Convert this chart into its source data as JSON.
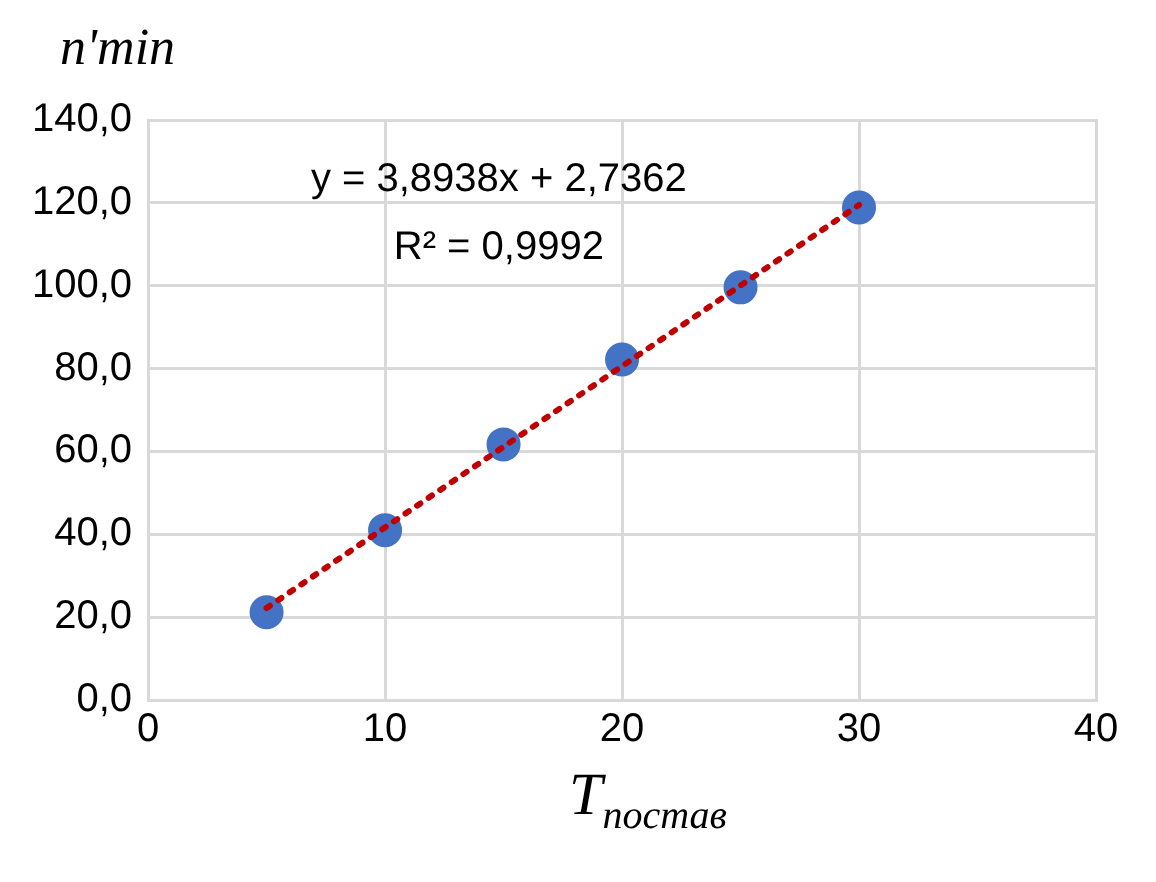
{
  "chart_data": {
    "type": "scatter",
    "xlabel": "T$_{постав}$",
    "ylabel": "n'min",
    "xlim": [
      0,
      40
    ],
    "xticks": [
      0,
      10,
      20,
      30,
      40
    ],
    "ylim": [
      0,
      140
    ],
    "yticks": [
      {
        "value": 0,
        "label": "0,0"
      },
      {
        "value": 20,
        "label": "20,0"
      },
      {
        "value": 40,
        "label": "40,0"
      },
      {
        "value": 60,
        "label": "60,0"
      },
      {
        "value": 80,
        "label": "80,0"
      },
      {
        "value": 100,
        "label": "100,0"
      },
      {
        "value": 120,
        "label": "120,0"
      },
      {
        "value": 140,
        "label": "140,0"
      }
    ],
    "grid": true,
    "marker": "circle",
    "series": [
      {
        "color": "#4472c4",
        "x": [
          5,
          10,
          15,
          20,
          25,
          30
        ],
        "values": [
          21.2,
          41.0,
          61.7,
          82.2,
          99.6,
          118.9
        ]
      },
      {
        "type": "line",
        "color": "#c00000",
        "line_style": "dotted",
        "marker": "none",
        "x": [
          5,
          30
        ],
        "values": [
          22.2,
          119.5
        ]
      }
    ],
    "annotations": [
      "y = 3,8938x + 2,7362",
      "R² = 0,9992"
    ]
  }
}
